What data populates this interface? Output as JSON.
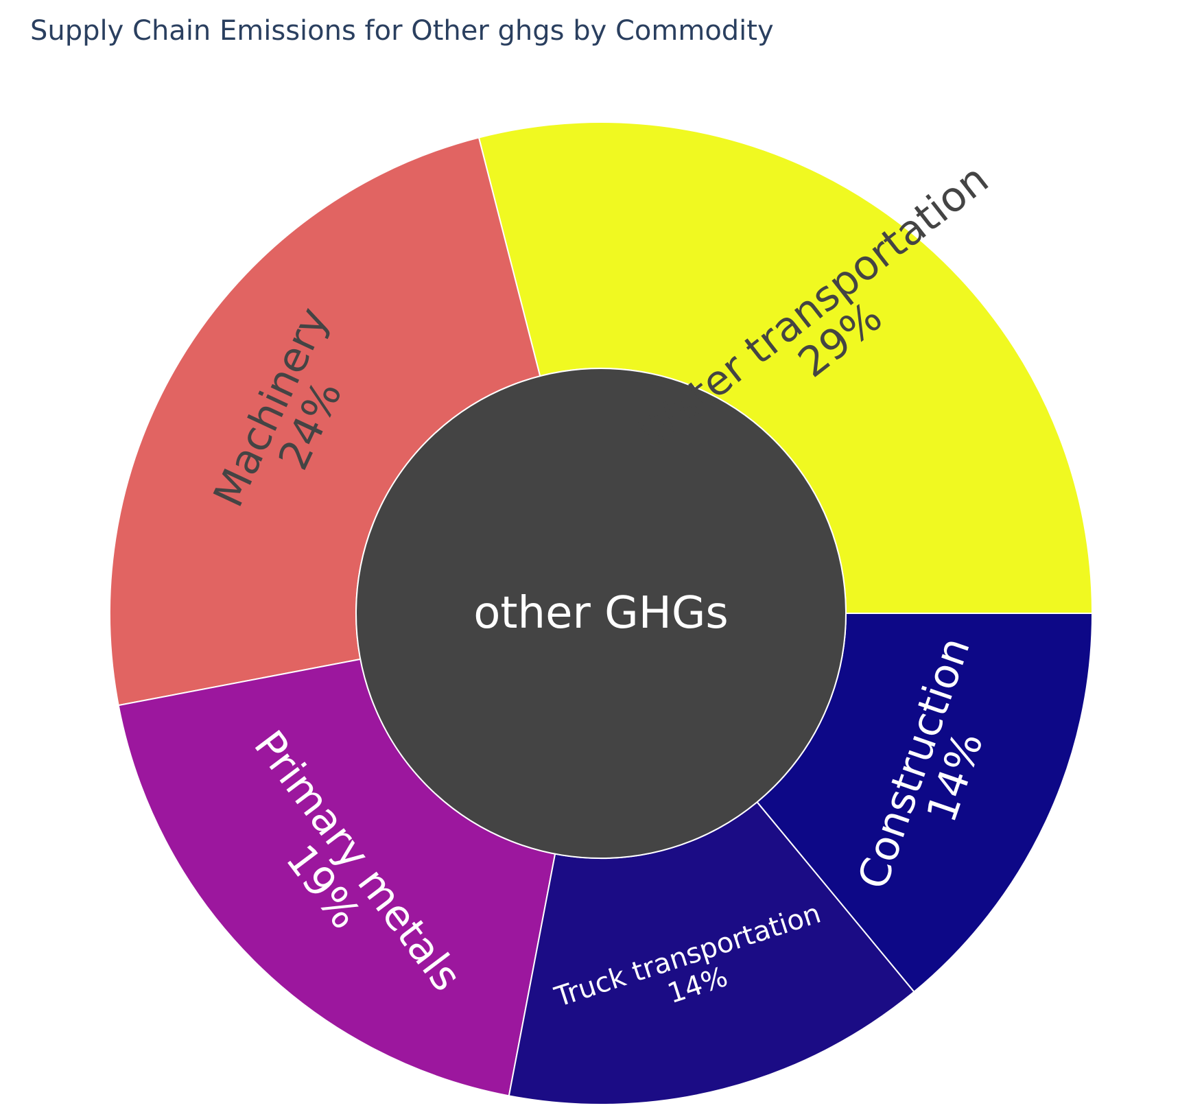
{
  "chart_data": {
    "type": "sunburst",
    "title": "Supply Chain Emissions for Other ghgs by Commodity",
    "root": {
      "label": "other GHGs",
      "color": "#444444",
      "text_color": "#ffffff"
    },
    "slices": [
      {
        "label": "Water transportation",
        "percent": 29,
        "percent_text": "29%",
        "color": "#f0f921",
        "text_color": "#444444"
      },
      {
        "label": "Machinery",
        "percent": 24,
        "percent_text": "24%",
        "color": "#e16462",
        "text_color": "#444444"
      },
      {
        "label": "Primary metals",
        "percent": 19,
        "percent_text": "19%",
        "color": "#9c179e",
        "text_color": "#ffffff"
      },
      {
        "label": "Truck transportation",
        "percent": 14,
        "percent_text": "14%",
        "color": "#1b0c85",
        "text_color": "#ffffff"
      },
      {
        "label": "Construction",
        "percent": 14,
        "percent_text": "14%",
        "color": "#0d0887",
        "text_color": "#ffffff"
      }
    ]
  }
}
